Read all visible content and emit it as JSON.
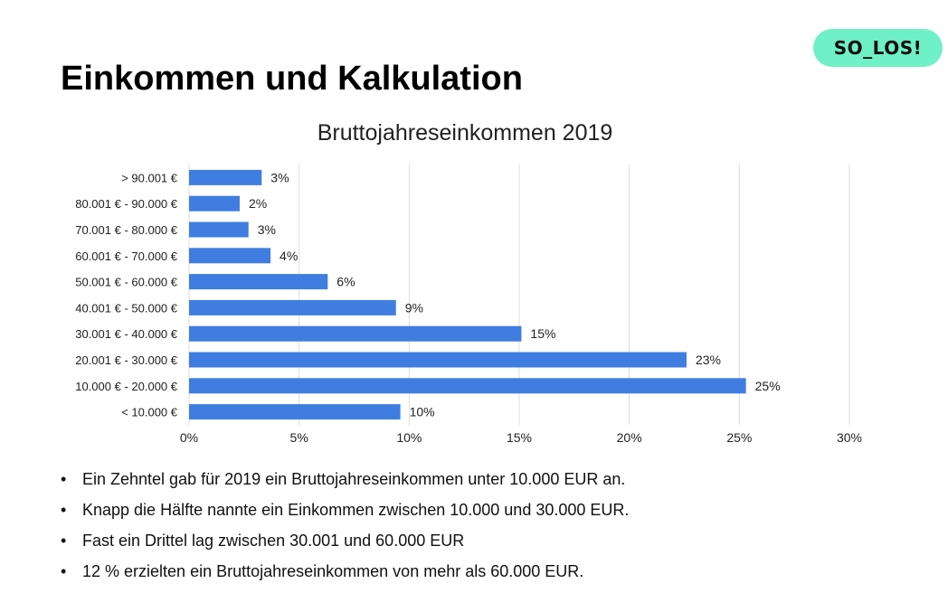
{
  "slide": {
    "title": "Einkommen und Kalkulation",
    "logo_text": "SO_LOS!"
  },
  "colors": {
    "bar": "#3f7de0",
    "logo_bg": "#6ff0c6",
    "gridline": "#dddddd"
  },
  "chart_data": {
    "type": "bar",
    "orientation": "horizontal",
    "title": "Bruttojahreseinkommen 2019",
    "categories": [
      "> 90.001 €",
      "80.001 € - 90.000 €",
      "70.001 € - 80.000 €",
      "60.001 € - 70.000 €",
      "50.001 € - 60.000 €",
      "40.001 € - 50.000 €",
      "30.001 € - 40.000 €",
      "20.001 € - 30.000 €",
      "10.000 € - 20.000 €",
      "< 10.000 €"
    ],
    "values": [
      3.3,
      2.3,
      2.7,
      3.7,
      6.3,
      9.4,
      15.1,
      22.6,
      25.3,
      9.6
    ],
    "data_labels": [
      "3%",
      "2%",
      "3%",
      "4%",
      "6%",
      "9%",
      "15%",
      "23%",
      "25%",
      "10%"
    ],
    "xlim": [
      0,
      30
    ],
    "xticks": [
      "0%",
      "5%",
      "10%",
      "15%",
      "20%",
      "25%",
      "30%"
    ],
    "xtick_values": [
      0,
      5,
      10,
      15,
      20,
      25,
      30
    ],
    "grid": "vertical",
    "legend": "none"
  },
  "bullets": [
    "Ein Zehntel gab für 2019 ein Bruttojahreseinkommen unter 10.000 EUR an.",
    "Knapp die Hälfte nannte ein Einkommen zwischen 10.000 und 30.000 EUR.",
    "Fast ein Drittel lag zwischen 30.001 und 60.000 EUR",
    "12 % erzielten ein Bruttojahreseinkommen von mehr als 60.000 EUR."
  ],
  "bullet_marker": "•"
}
